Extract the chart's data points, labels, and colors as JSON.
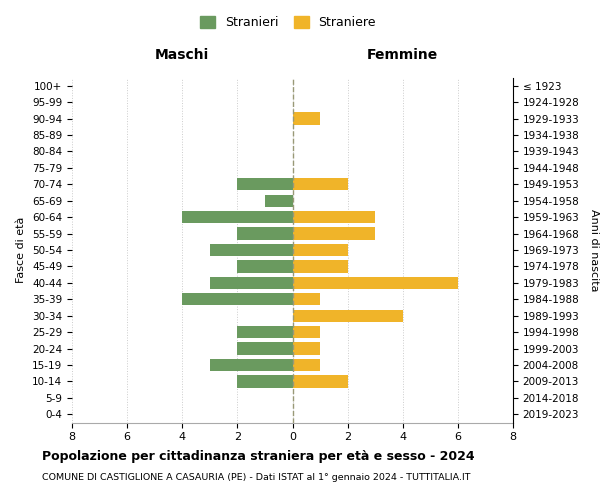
{
  "age_groups": [
    "0-4",
    "5-9",
    "10-14",
    "15-19",
    "20-24",
    "25-29",
    "30-34",
    "35-39",
    "40-44",
    "45-49",
    "50-54",
    "55-59",
    "60-64",
    "65-69",
    "70-74",
    "75-79",
    "80-84",
    "85-89",
    "90-94",
    "95-99",
    "100+"
  ],
  "birth_years": [
    "2019-2023",
    "2014-2018",
    "2009-2013",
    "2004-2008",
    "1999-2003",
    "1994-1998",
    "1989-1993",
    "1984-1988",
    "1979-1983",
    "1974-1978",
    "1969-1973",
    "1964-1968",
    "1959-1963",
    "1954-1958",
    "1949-1953",
    "1944-1948",
    "1939-1943",
    "1934-1938",
    "1929-1933",
    "1924-1928",
    "≤ 1923"
  ],
  "males": [
    0,
    0,
    2,
    3,
    2,
    2,
    0,
    4,
    3,
    2,
    3,
    2,
    4,
    1,
    2,
    0,
    0,
    0,
    0,
    0,
    0
  ],
  "females": [
    0,
    0,
    2,
    1,
    1,
    1,
    4,
    1,
    6,
    2,
    2,
    3,
    3,
    0,
    2,
    0,
    0,
    0,
    1,
    0,
    0
  ],
  "male_color": "#6a9a5f",
  "female_color": "#f0b429",
  "title": "Popolazione per cittadinanza straniera per età e sesso - 2024",
  "subtitle": "COMUNE DI CASTIGLIONE A CASAURIA (PE) - Dati ISTAT al 1° gennaio 2024 - TUTTITALIA.IT",
  "legend_male": "Stranieri",
  "legend_female": "Straniere",
  "xlabel_left": "Maschi",
  "xlabel_right": "Femmine",
  "ylabel_left": "Fasce di età",
  "ylabel_right": "Anni di nascita",
  "xlim": 8,
  "background_color": "#ffffff",
  "grid_color": "#cccccc"
}
